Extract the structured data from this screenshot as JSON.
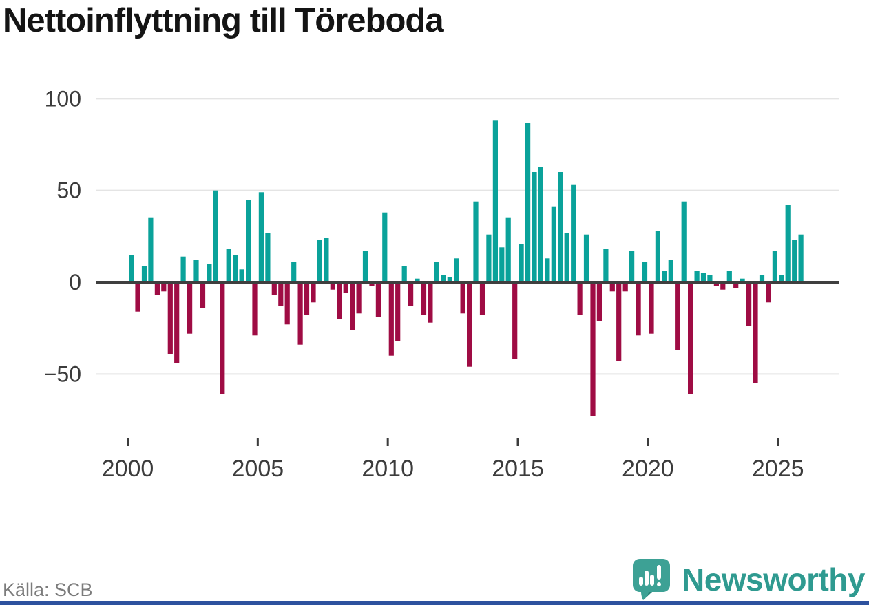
{
  "title": "Nettoinflyttning till Töreboda",
  "footer": {
    "source": "Källa: SCB",
    "brand": "Newsworthy"
  },
  "colors": {
    "positive_bar": "#0aa29a",
    "negative_bar": "#9f0c44",
    "zero_line": "#3f3f3f",
    "gridline": "#e4e4e4",
    "axis_text": "#3c3c3c",
    "title_text": "#141414",
    "source_text": "#7c7c7c",
    "brand_teal": "#2f9a90",
    "brand_icon_teal": "#3da195",
    "brand_icon_shadow": "#2c8379",
    "accent_strip": "#2d519e"
  },
  "chart_data": {
    "type": "bar",
    "title": "Nettoinflyttning till Töreboda",
    "xlabel": "",
    "ylabel": "",
    "grid": true,
    "legend": false,
    "ylim": [
      -75,
      100
    ],
    "y_ticks": [
      {
        "value": 100,
        "label": "100"
      },
      {
        "value": 50,
        "label": "50"
      },
      {
        "value": 0,
        "label": "0"
      },
      {
        "value": -50,
        "label": "−50"
      }
    ],
    "x_ticks": [
      {
        "index": 0,
        "label": "2000"
      },
      {
        "index": 20,
        "label": "2005"
      },
      {
        "index": 40,
        "label": "2010"
      },
      {
        "index": 60,
        "label": "2015"
      },
      {
        "index": 80,
        "label": "2020"
      },
      {
        "index": 100,
        "label": "2025"
      }
    ],
    "categories": [
      "2000-Q1",
      "2000-Q2",
      "2000-Q3",
      "2000-Q4",
      "2001-Q1",
      "2001-Q2",
      "2001-Q3",
      "2001-Q4",
      "2002-Q1",
      "2002-Q2",
      "2002-Q3",
      "2002-Q4",
      "2003-Q1",
      "2003-Q2",
      "2003-Q3",
      "2003-Q4",
      "2004-Q1",
      "2004-Q2",
      "2004-Q3",
      "2004-Q4",
      "2005-Q1",
      "2005-Q2",
      "2005-Q3",
      "2005-Q4",
      "2006-Q1",
      "2006-Q2",
      "2006-Q3",
      "2006-Q4",
      "2007-Q1",
      "2007-Q2",
      "2007-Q3",
      "2007-Q4",
      "2008-Q1",
      "2008-Q2",
      "2008-Q3",
      "2008-Q4",
      "2009-Q1",
      "2009-Q2",
      "2009-Q3",
      "2009-Q4",
      "2010-Q1",
      "2010-Q2",
      "2010-Q3",
      "2010-Q4",
      "2011-Q1",
      "2011-Q2",
      "2011-Q3",
      "2011-Q4",
      "2012-Q1",
      "2012-Q2",
      "2012-Q3",
      "2012-Q4",
      "2013-Q1",
      "2013-Q2",
      "2013-Q3",
      "2013-Q4",
      "2014-Q1",
      "2014-Q2",
      "2014-Q3",
      "2014-Q4",
      "2015-Q1",
      "2015-Q2",
      "2015-Q3",
      "2015-Q4",
      "2016-Q1",
      "2016-Q2",
      "2016-Q3",
      "2016-Q4",
      "2017-Q1",
      "2017-Q2",
      "2017-Q3",
      "2017-Q4",
      "2018-Q1",
      "2018-Q2",
      "2018-Q3",
      "2018-Q4",
      "2019-Q1",
      "2019-Q2",
      "2019-Q3",
      "2019-Q4",
      "2020-Q1",
      "2020-Q2",
      "2020-Q3",
      "2020-Q4",
      "2021-Q1",
      "2021-Q2",
      "2021-Q3",
      "2021-Q4",
      "2022-Q1",
      "2022-Q2",
      "2022-Q3",
      "2022-Q4",
      "2023-Q1",
      "2023-Q2",
      "2023-Q3",
      "2023-Q4",
      "2024-Q1",
      "2024-Q2",
      "2024-Q3",
      "2024-Q4",
      "2025-Q1",
      "2025-Q2",
      "2025-Q3",
      "2025-Q4"
    ],
    "values": [
      15,
      -16,
      9,
      35,
      -7,
      -5,
      -39,
      -44,
      14,
      -28,
      12,
      -14,
      10,
      50,
      -61,
      18,
      15,
      7,
      45,
      -29,
      49,
      27,
      -7,
      -13,
      -23,
      11,
      -34,
      -18,
      -11,
      23,
      24,
      -4,
      -20,
      -6,
      -26,
      -17,
      17,
      -2,
      -19,
      38,
      -40,
      -32,
      9,
      -13,
      2,
      -18,
      -22,
      11,
      4,
      3,
      13,
      -17,
      -46,
      44,
      -18,
      26,
      88,
      19,
      35,
      -42,
      21,
      87,
      60,
      63,
      13,
      41,
      60,
      27,
      53,
      -18,
      26,
      -73,
      -21,
      18,
      -5,
      -43,
      -5,
      17,
      -29,
      11,
      -28,
      28,
      6,
      12,
      -37,
      44,
      -61,
      6,
      5,
      4,
      -2,
      -4,
      6,
      -3,
      2,
      -24,
      -55,
      4,
      -11,
      17,
      4,
      42,
      23,
      26
    ]
  }
}
